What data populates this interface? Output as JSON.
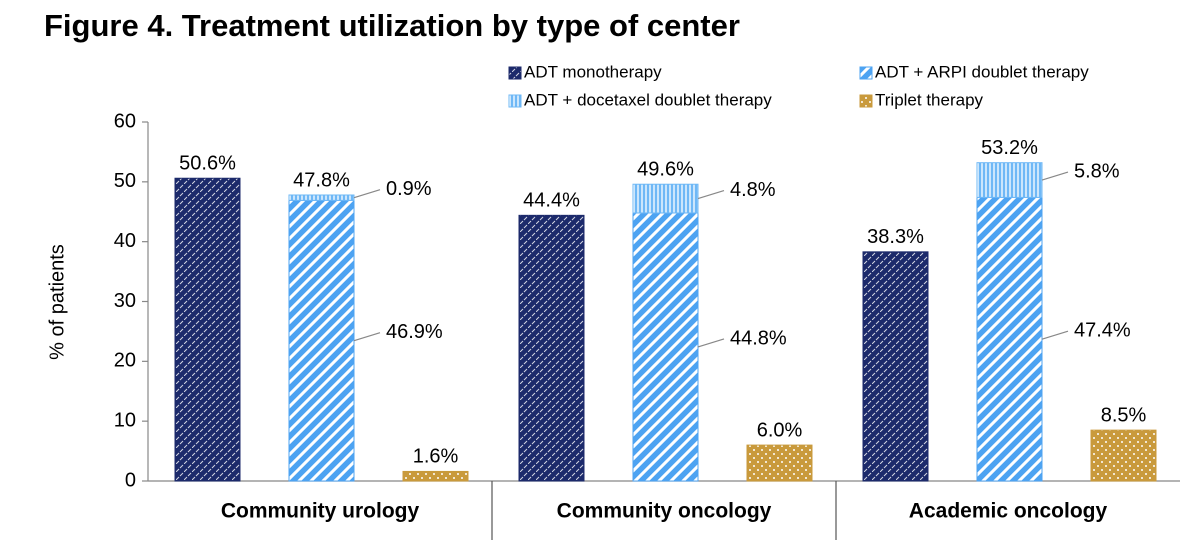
{
  "chart_data": {
    "type": "bar",
    "title": "Figure 4. Treatment utilization by type of center",
    "ylabel": "% of patients",
    "categories": [
      "Community urology",
      "Community oncology",
      "Academic oncology"
    ],
    "series": [
      {
        "name": "ADT monotherapy",
        "color": "#1c2a6b",
        "values": [
          50.6,
          44.4,
          38.3
        ],
        "value_labels": [
          "50.6%",
          "44.4%",
          "38.3%"
        ]
      },
      {
        "name": "ADT + ARPI doublet therapy",
        "color": "#4da3f2",
        "values": [
          46.9,
          44.8,
          47.4
        ],
        "value_labels": [
          "46.9%",
          "44.8%",
          "47.4%"
        ]
      },
      {
        "name": "ADT + docetaxel doublet therapy",
        "color": "#6fb8f6",
        "values": [
          0.9,
          4.8,
          5.8
        ],
        "value_labels": [
          "0.9%",
          "4.8%",
          "5.8%"
        ]
      },
      {
        "name": "Triplet therapy",
        "color": "#c99a3c",
        "values": [
          1.6,
          6,
          8.5
        ],
        "value_labels": [
          "1.6%",
          "6.0%",
          "8.5%"
        ]
      }
    ],
    "stack_totals": {
      "values": [
        47.8,
        49.6,
        53.2
      ],
      "value_labels": [
        "47.8%",
        "49.6%",
        "53.2%"
      ]
    },
    "ylim": [
      0,
      60
    ],
    "yticks": [
      0,
      10,
      20,
      30,
      40,
      50,
      60
    ],
    "grid": false,
    "legend": "top-right"
  }
}
